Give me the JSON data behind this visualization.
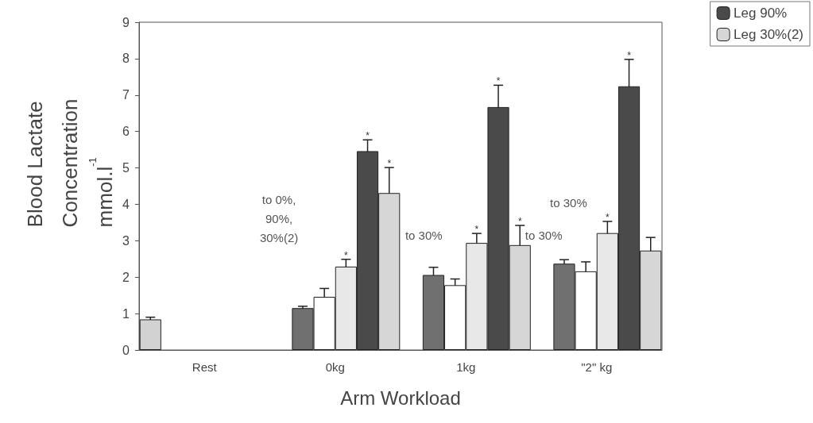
{
  "chart_data": {
    "type": "bar",
    "xlabel": "Arm Workload",
    "ylabel": "Blood Lactate Concentration mmol.l$^{-1}$",
    "categories": [
      "Rest",
      "0kg",
      "1kg",
      "\"2\" kg"
    ],
    "series": [
      {
        "color": "#d2d2d2",
        "values": [
          0.84,
          null,
          null,
          null
        ],
        "errors": [
          0.06,
          null,
          null,
          null
        ]
      },
      {
        "color": "#707070",
        "values": [
          null,
          1.15,
          2.06,
          2.37
        ],
        "errors": [
          null,
          0.05,
          0.21,
          0.11
        ]
      },
      {
        "color": "#ffffff",
        "values": [
          null,
          1.46,
          1.78,
          2.16
        ],
        "errors": [
          null,
          0.23,
          0.17,
          0.26
        ]
      },
      {
        "color": "#e8e8e8",
        "values": [
          null,
          2.29,
          2.94,
          3.21
        ],
        "errors": [
          null,
          0.2,
          0.26,
          0.32
        ],
        "value_labels": [
          null,
          "*",
          "*",
          "*"
        ]
      },
      {
        "name": "Leg 90%",
        "color": "#4a4a4a",
        "values": [
          null,
          5.46,
          6.67,
          7.24
        ],
        "errors": [
          null,
          0.31,
          0.6,
          0.74
        ],
        "value_labels": [
          null,
          "*",
          "*",
          "*"
        ]
      },
      {
        "name": "Leg 30%(2)",
        "color": "#d6d6d6",
        "values": [
          null,
          4.31,
          2.88,
          2.73
        ],
        "errors": [
          null,
          0.7,
          0.54,
          0.36
        ],
        "value_labels": [
          null,
          "*",
          "*",
          null
        ]
      }
    ],
    "annotations": [
      "to 0%, 90%, 30%(2)",
      "to 30%",
      "to 30%",
      "to 30%"
    ],
    "ylim": [
      0,
      9
    ],
    "yticks": [
      0,
      1,
      2,
      3,
      4,
      5,
      6,
      7,
      8,
      9
    ],
    "grid": false,
    "legend": "top right"
  }
}
